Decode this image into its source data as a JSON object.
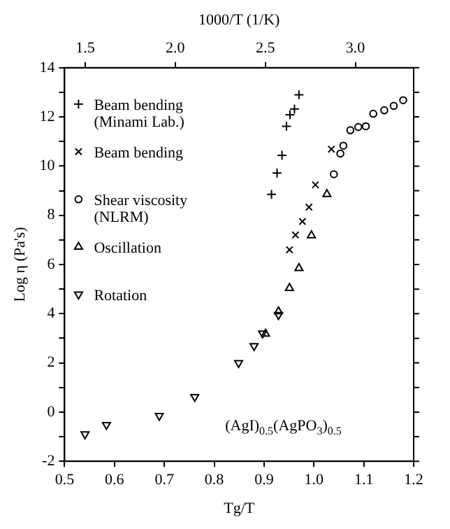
{
  "chart_data": {
    "type": "scatter",
    "xlabel": "Tg/T",
    "ylabel": "Log η (Pa's)",
    "x2label": "1000/T (1/K)",
    "xlim": [
      0.5,
      1.2
    ],
    "xticks": [
      0.5,
      0.6,
      0.7,
      0.8,
      0.9,
      {
        "value": 1,
        "label": "1.0"
      },
      1.1,
      1.2
    ],
    "x2lim": [
      1.385,
      3.324
    ],
    "x2ticks": [
      1.5,
      {
        "value": 2,
        "label": "2.0"
      },
      2.5,
      {
        "value": 3,
        "label": "3.0"
      }
    ],
    "ylim": [
      -2,
      14
    ],
    "yticks": [
      -2,
      {
        "value": -1,
        "label": null
      },
      0,
      {
        "value": 1,
        "label": null
      },
      2,
      {
        "value": 3,
        "label": null
      },
      4,
      {
        "value": 5,
        "label": null
      },
      6,
      {
        "value": 7,
        "label": null
      },
      8,
      {
        "value": 9,
        "label": null
      },
      10,
      {
        "value": 11,
        "label": null
      },
      12,
      {
        "value": 13,
        "label": null
      },
      14
    ],
    "grid": false,
    "legend": "top left",
    "annotations": [
      "(AgI)$_{0.5}$(AgPO$_{3}$)$_{0.5}$"
    ],
    "series": [
      {
        "name": "Beam bending (Minami Lab.)",
        "color": "#000000",
        "marker": "cross",
        "x": [
          0.97,
          0.961,
          0.952,
          0.945,
          0.936,
          0.926,
          0.915
        ],
        "values": [
          12.9,
          12.32,
          12.09,
          11.62,
          10.44,
          9.72,
          8.85
        ]
      },
      {
        "name": "Beam bending",
        "color": "#000000",
        "marker": "x",
        "x": [
          1.035,
          1.003,
          0.99,
          0.977,
          0.963,
          0.951
        ],
        "values": [
          10.69,
          9.24,
          8.33,
          7.75,
          7.2,
          6.6
        ]
      },
      {
        "name": "Shear viscosity (NLRM)",
        "color": "#000000",
        "marker": "circle",
        "x": [
          1.04,
          1.053,
          1.059,
          1.073,
          1.089,
          1.104,
          1.119,
          1.141,
          1.16,
          1.179
        ],
        "values": [
          9.67,
          10.51,
          10.83,
          11.46,
          11.59,
          11.62,
          12.13,
          12.27,
          12.45,
          12.68
        ]
      },
      {
        "name": "Oscillation",
        "color": "#000000",
        "marker": "triangle",
        "x": [
          1.026,
          0.995,
          0.97,
          0.951,
          0.929,
          0.903
        ],
        "values": [
          8.86,
          7.18,
          5.85,
          5.04,
          4.09,
          3.18
        ]
      },
      {
        "name": "Rotation",
        "color": "#000000",
        "marker": "triangle-down",
        "x": [
          0.929,
          0.897,
          0.88,
          0.849,
          0.761,
          0.69,
          0.584,
          0.541
        ],
        "values": [
          3.95,
          3.2,
          2.69,
          2.0,
          0.62,
          -0.15,
          -0.52,
          -0.9
        ]
      }
    ]
  }
}
